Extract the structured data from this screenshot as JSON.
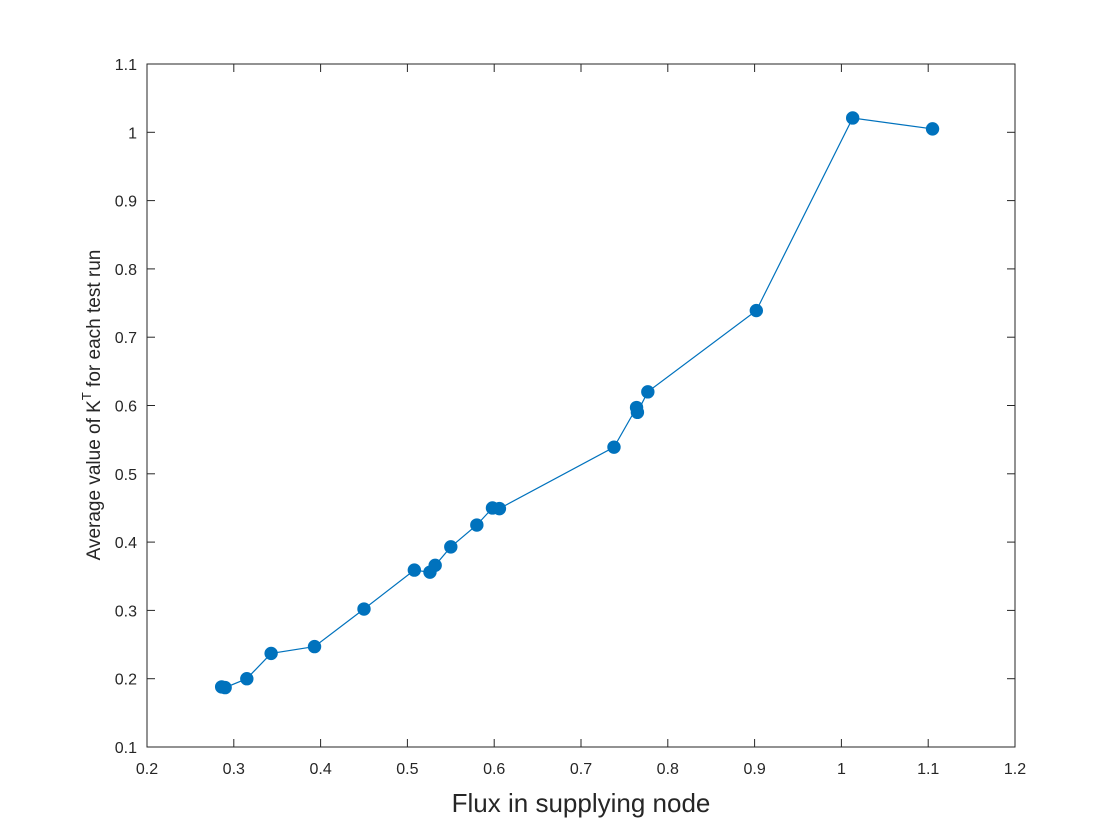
{
  "chart_data": {
    "type": "line",
    "xlabel": "Flux in supplying node",
    "ylabel": "Average value of K",
    "ylabel_superscript": "T",
    "ylabel_suffix": " for each test run",
    "xlim": [
      0.2,
      1.2
    ],
    "ylim": [
      0.1,
      1.1
    ],
    "xticks": [
      0.2,
      0.3,
      0.4,
      0.5,
      0.6,
      0.7,
      0.8,
      0.9,
      1.0,
      1.1,
      1.2
    ],
    "xtick_labels": [
      "0.2",
      "0.3",
      "0.4",
      "0.5",
      "0.6",
      "0.7",
      "0.8",
      "0.9",
      "1",
      "1.1",
      "1.2"
    ],
    "yticks": [
      0.1,
      0.2,
      0.3,
      0.4,
      0.5,
      0.6,
      0.7,
      0.8,
      0.9,
      1.0,
      1.1
    ],
    "ytick_labels": [
      "0.1",
      "0.2",
      "0.3",
      "0.4",
      "0.5",
      "0.6",
      "0.7",
      "0.8",
      "0.9",
      "1",
      "1.1"
    ],
    "grid": false,
    "series": [
      {
        "color": "#0072bd",
        "marker": "circle",
        "x": [
          0.286,
          0.29,
          0.315,
          0.343,
          0.393,
          0.45,
          0.508,
          0.526,
          0.532,
          0.55,
          0.58,
          0.598,
          0.606,
          0.738,
          0.764,
          0.765,
          0.777,
          0.902,
          1.013,
          1.105
        ],
        "y": [
          0.188,
          0.187,
          0.2,
          0.237,
          0.247,
          0.302,
          0.359,
          0.356,
          0.366,
          0.393,
          0.425,
          0.45,
          0.449,
          0.539,
          0.597,
          0.59,
          0.62,
          0.739,
          1.021,
          1.005
        ]
      }
    ]
  }
}
